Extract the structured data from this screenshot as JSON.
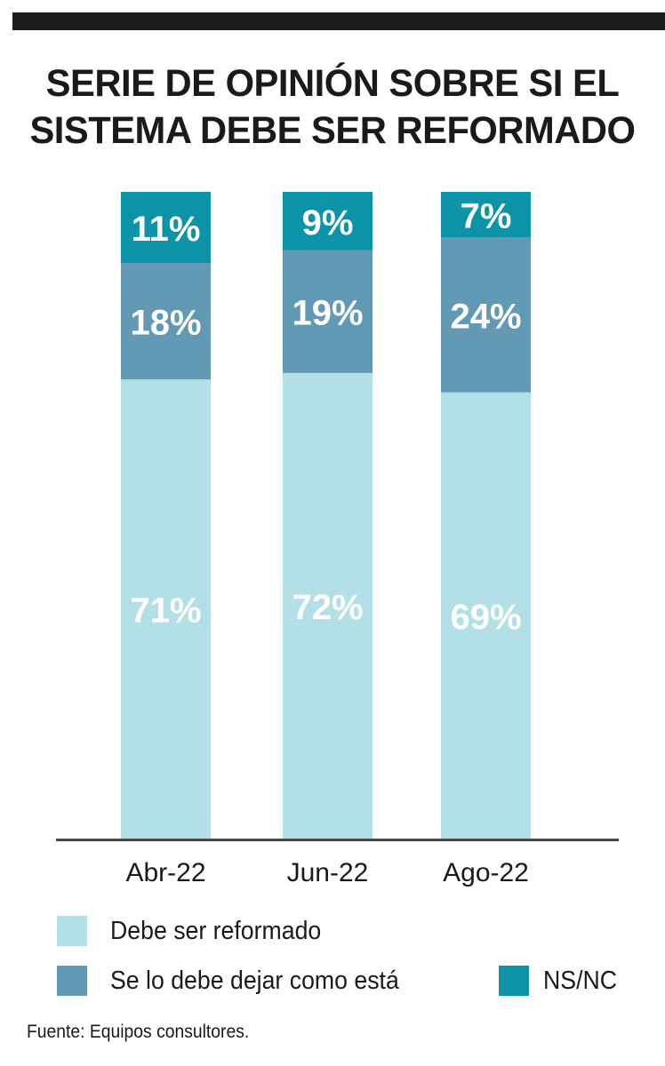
{
  "title_lines": [
    "SERIE DE OPINIÓN SOBRE SI EL",
    "SISTEMA DEBE SER REFORMADO"
  ],
  "source": "Fuente: Equipos consultores.",
  "colors": {
    "reformado": "#b3dfe6",
    "dejar": "#6299b5",
    "nsnc": "#0c93a8",
    "axis": "#4a4a4a"
  },
  "legend": [
    {
      "key": "reformado",
      "label": "Debe ser reformado"
    },
    {
      "key": "dejar",
      "label": "Se lo debe dejar como está"
    },
    {
      "key": "nsnc",
      "label": "NS/NC"
    }
  ],
  "chart_data": {
    "type": "bar",
    "stacked": true,
    "categories": [
      "Abr-22",
      "Jun-22",
      "Ago-22"
    ],
    "series": [
      {
        "name": "Debe ser reformado",
        "key": "reformado",
        "values": [
          71,
          72,
          69
        ],
        "labels": [
          "71%",
          "72%",
          "69%"
        ]
      },
      {
        "name": "Se lo debe dejar como está",
        "key": "dejar",
        "values": [
          18,
          19,
          24
        ],
        "labels": [
          "18%",
          "19%",
          "24%"
        ]
      },
      {
        "name": "NS/NC",
        "key": "nsnc",
        "values": [
          11,
          9,
          7
        ],
        "labels": [
          "11%",
          "9%",
          "7%"
        ]
      }
    ],
    "ylim": [
      0,
      100
    ],
    "grid": false,
    "legend_position": "bottom"
  }
}
